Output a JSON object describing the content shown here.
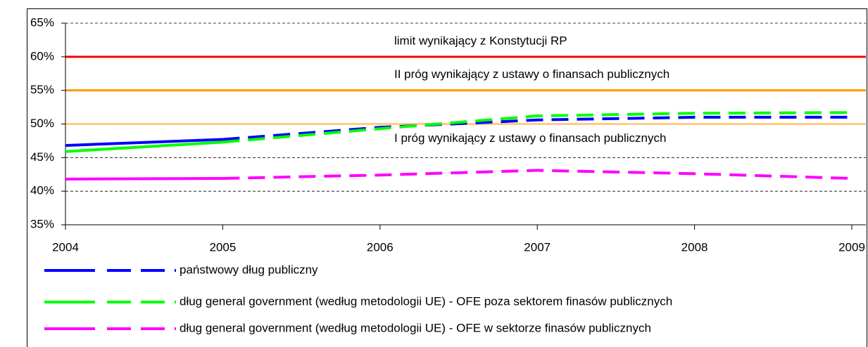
{
  "chart_data": {
    "type": "line",
    "x": [
      2004,
      2005,
      2006,
      2007,
      2008,
      2009
    ],
    "xlim": [
      2004,
      2009
    ],
    "xticks": [
      2004,
      2005,
      2006,
      2007,
      2008,
      2009
    ],
    "ylim": [
      35,
      65
    ],
    "yticks": [
      {
        "value": 35,
        "label": "35%"
      },
      {
        "value": 40,
        "label": "40%"
      },
      {
        "value": 45,
        "label": "45%"
      },
      {
        "value": 50,
        "label": "50%"
      },
      {
        "value": 55,
        "label": "55%"
      },
      {
        "value": 60,
        "label": "60%"
      },
      {
        "value": 65,
        "label": "65%"
      }
    ],
    "grid": true,
    "legend": "bottom",
    "series": [
      {
        "name": "państwowy dług publiczny",
        "color": "#0000ff",
        "values": [
          46.8,
          47.7,
          49.5,
          50.6,
          51.0,
          51.0
        ]
      },
      {
        "name": "dług general government (według metodologii UE) - OFE poza sektorem finasów publicznych",
        "color": "#00ff00",
        "values": [
          45.9,
          47.3,
          49.3,
          51.2,
          51.6,
          51.7
        ]
      },
      {
        "name": "dług general government (według metodologii UE) - OFE w sektorze finasów publicznych",
        "color": "#ff00ff",
        "values": [
          41.8,
          41.9,
          42.4,
          43.1,
          42.6,
          41.9
        ]
      }
    ],
    "reference_lines": [
      {
        "value": 60,
        "label": "limit wynikający z Konstytucji RP",
        "color": "#ff0000",
        "label_position": "above"
      },
      {
        "value": 55,
        "label": "II próg wynikający z ustawy o finansach publicznych",
        "color": "#ff9900",
        "label_position": "above"
      },
      {
        "value": 50,
        "label": "I próg wynikający z ustawy o finansach publicznych",
        "color": "#ffcc80",
        "label_position": "below"
      }
    ]
  }
}
